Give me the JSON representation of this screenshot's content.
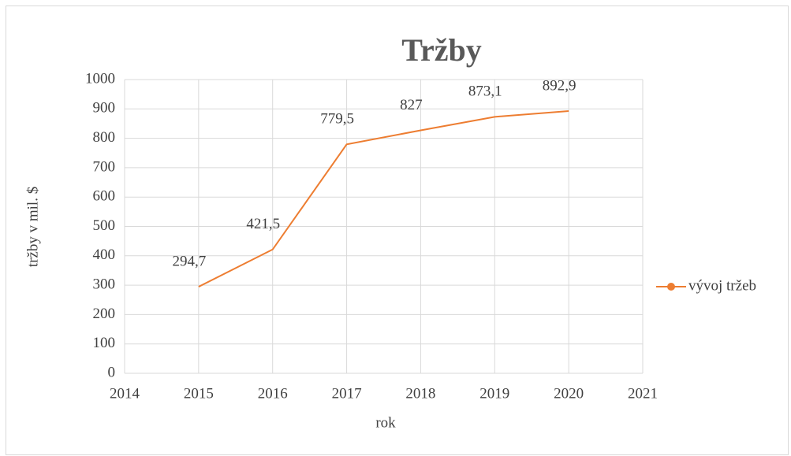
{
  "chart_data": {
    "type": "line",
    "title": "Tržby",
    "xlabel": "rok",
    "ylabel": "tržby v mil. $",
    "x": [
      2015,
      2016,
      2017,
      2018,
      2019,
      2020
    ],
    "series": [
      {
        "name": "vývoj tržeb",
        "color": "#ed7d31",
        "values": [
          294.7,
          421.5,
          779.5,
          827,
          873.1,
          892.9
        ],
        "value_labels": [
          "294,7",
          "421,5",
          "779,5",
          "827",
          "873,1",
          "892,9"
        ]
      }
    ],
    "xlim": [
      2014,
      2021
    ],
    "xticks": [
      2014,
      2015,
      2016,
      2017,
      2018,
      2019,
      2020,
      2021
    ],
    "ylim": [
      0,
      1000
    ],
    "yticks": [
      0,
      100,
      200,
      300,
      400,
      500,
      600,
      700,
      800,
      900,
      1000
    ],
    "grid": true,
    "legend": "right"
  }
}
